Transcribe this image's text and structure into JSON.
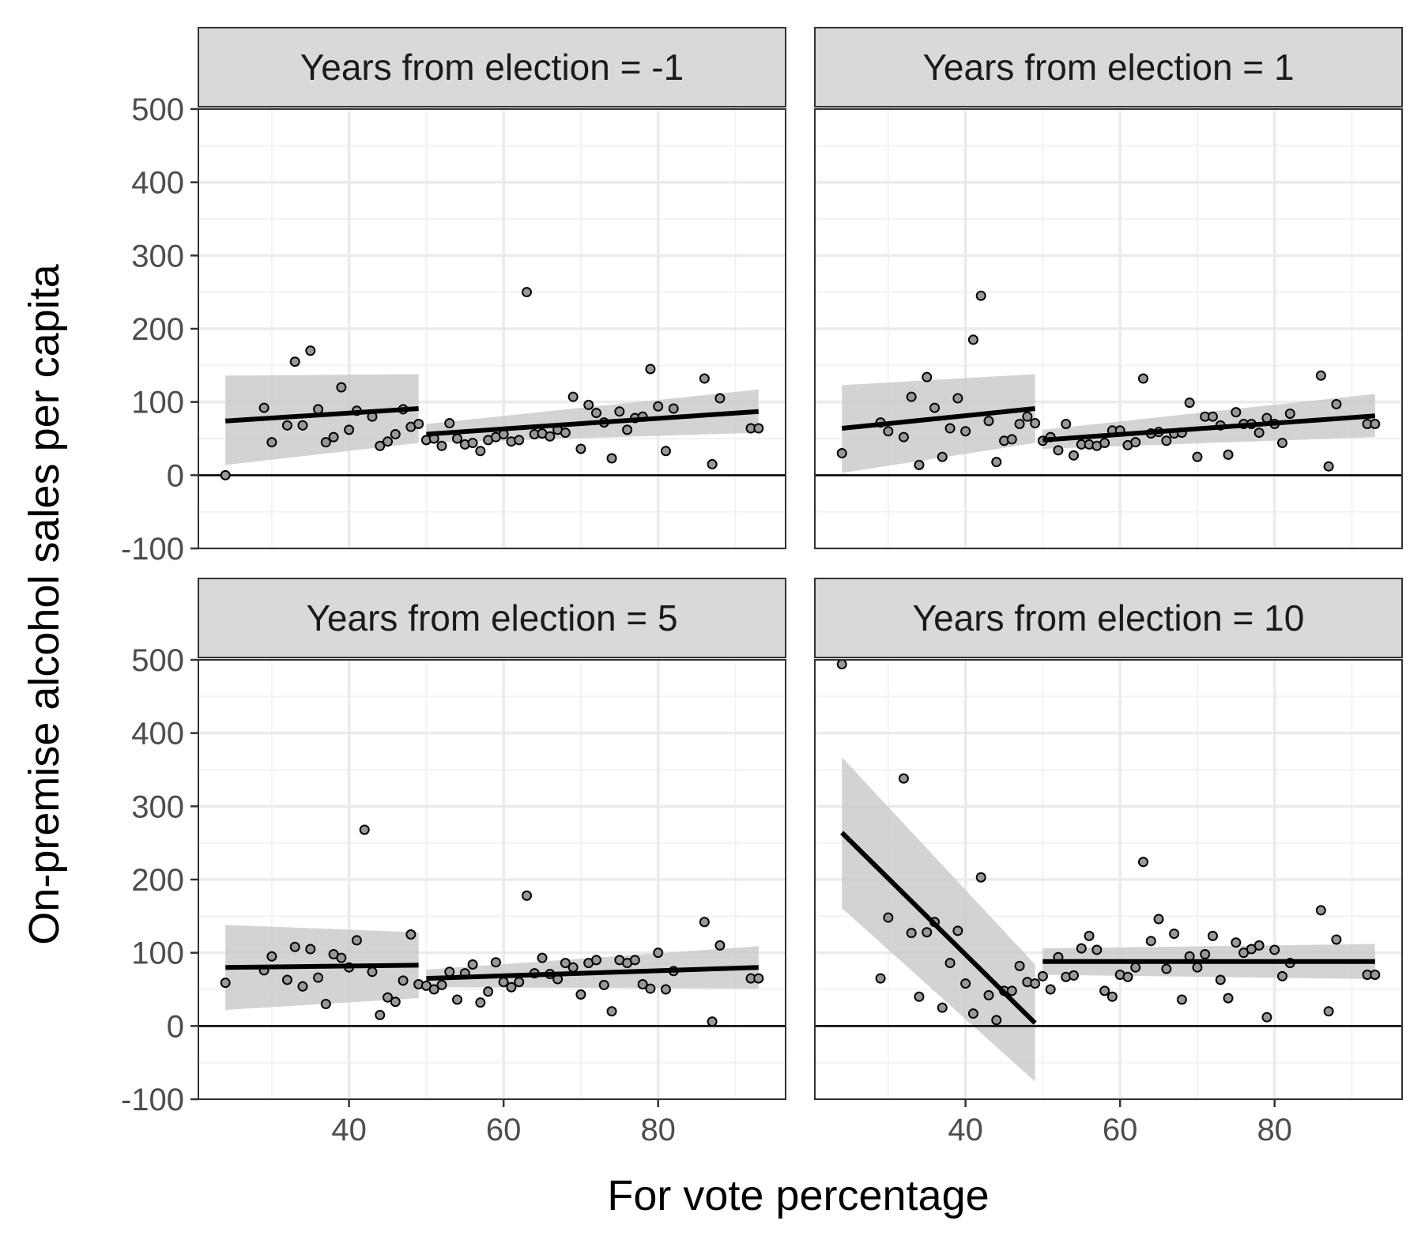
{
  "chart_data": {
    "type": "scatter",
    "xlabel": "For vote percentage",
    "ylabel": "On-premise alcohol sales per capita",
    "xlim": [
      20.5,
      96.5
    ],
    "ylim": [
      -100,
      500
    ],
    "x_ticks": [
      40,
      60,
      80
    ],
    "y_ticks": [
      -100,
      0,
      100,
      200,
      300,
      400,
      500
    ],
    "y_tick_labels": [
      "-100",
      "0",
      "100",
      "200",
      "300",
      "400",
      "500"
    ],
    "x_tick_labels": [
      "40",
      "60",
      "80"
    ],
    "reference_line_y": 0,
    "cutoff_x": 50,
    "grid": true,
    "layout": "2x2 facets",
    "colors": {
      "strip_fill": "#d9d9d9",
      "panel_border": "#333333",
      "grid_major": "#ebebeb",
      "grid_minor": "#f2f2f2",
      "point_fill": "#999999",
      "point_stroke": "#000000",
      "fit_line": "#000000",
      "ribbon": "#c8c8c8"
    },
    "panels": [
      {
        "strip": "Years from election = -1",
        "points": [
          [
            24,
            0
          ],
          [
            29,
            92
          ],
          [
            30,
            45
          ],
          [
            32,
            68
          ],
          [
            33,
            155
          ],
          [
            34,
            68
          ],
          [
            35,
            170
          ],
          [
            36,
            90
          ],
          [
            37,
            45
          ],
          [
            38,
            52
          ],
          [
            39,
            120
          ],
          [
            40,
            62
          ],
          [
            41,
            88
          ],
          [
            43,
            80
          ],
          [
            44,
            40
          ],
          [
            45,
            46
          ],
          [
            46,
            56
          ],
          [
            47,
            90
          ],
          [
            48,
            66
          ],
          [
            49,
            70
          ],
          [
            50,
            48
          ],
          [
            51,
            50
          ],
          [
            52,
            40
          ],
          [
            53,
            71
          ],
          [
            54,
            50
          ],
          [
            55,
            42
          ],
          [
            56,
            44
          ],
          [
            57,
            33
          ],
          [
            58,
            48
          ],
          [
            59,
            52
          ],
          [
            60,
            56
          ],
          [
            61,
            46
          ],
          [
            62,
            48
          ],
          [
            63,
            250
          ],
          [
            64,
            56
          ],
          [
            65,
            57
          ],
          [
            66,
            53
          ],
          [
            67,
            62
          ],
          [
            68,
            58
          ],
          [
            69,
            107
          ],
          [
            70,
            36
          ],
          [
            71,
            96
          ],
          [
            72,
            85
          ],
          [
            73,
            72
          ],
          [
            74,
            23
          ],
          [
            75,
            87
          ],
          [
            76,
            62
          ],
          [
            77,
            78
          ],
          [
            78,
            80
          ],
          [
            79,
            145
          ],
          [
            80,
            94
          ],
          [
            81,
            33
          ],
          [
            82,
            91
          ],
          [
            86,
            132
          ],
          [
            87,
            15
          ],
          [
            88,
            105
          ],
          [
            92,
            64
          ],
          [
            93,
            64
          ]
        ],
        "fits": [
          {
            "x": [
              24,
              49
            ],
            "y": [
              74,
              91
            ],
            "ci_lower": [
              14,
              44
            ],
            "ci_upper": [
              136,
              138
            ]
          },
          {
            "x": [
              50,
              93
            ],
            "y": [
              56,
              87
            ],
            "ci_lower": [
              44,
              58
            ],
            "ci_upper": [
              70,
              117
            ]
          }
        ]
      },
      {
        "strip": "Years from election = 1",
        "points": [
          [
            24,
            30
          ],
          [
            29,
            72
          ],
          [
            30,
            60
          ],
          [
            32,
            52
          ],
          [
            33,
            107
          ],
          [
            34,
            14
          ],
          [
            35,
            134
          ],
          [
            36,
            92
          ],
          [
            37,
            25
          ],
          [
            38,
            64
          ],
          [
            39,
            105
          ],
          [
            40,
            60
          ],
          [
            41,
            185
          ],
          [
            42,
            245
          ],
          [
            43,
            74
          ],
          [
            44,
            18
          ],
          [
            45,
            47
          ],
          [
            46,
            49
          ],
          [
            47,
            70
          ],
          [
            48,
            80
          ],
          [
            49,
            71
          ],
          [
            50,
            47
          ],
          [
            51,
            52
          ],
          [
            52,
            34
          ],
          [
            53,
            70
          ],
          [
            54,
            27
          ],
          [
            55,
            42
          ],
          [
            56,
            42
          ],
          [
            57,
            40
          ],
          [
            58,
            44
          ],
          [
            59,
            61
          ],
          [
            60,
            61
          ],
          [
            61,
            41
          ],
          [
            62,
            45
          ],
          [
            63,
            132
          ],
          [
            64,
            57
          ],
          [
            65,
            59
          ],
          [
            66,
            47
          ],
          [
            67,
            57
          ],
          [
            68,
            58
          ],
          [
            69,
            99
          ],
          [
            70,
            25
          ],
          [
            71,
            80
          ],
          [
            72,
            80
          ],
          [
            73,
            68
          ],
          [
            74,
            28
          ],
          [
            75,
            86
          ],
          [
            76,
            70
          ],
          [
            77,
            70
          ],
          [
            78,
            58
          ],
          [
            79,
            78
          ],
          [
            80,
            70
          ],
          [
            81,
            44
          ],
          [
            82,
            84
          ],
          [
            86,
            136
          ],
          [
            87,
            12
          ],
          [
            88,
            97
          ],
          [
            92,
            70
          ],
          [
            93,
            70
          ]
        ],
        "fits": [
          {
            "x": [
              24,
              49
            ],
            "y": [
              64,
              91
            ],
            "ci_lower": [
              3,
              44
            ],
            "ci_upper": [
              123,
              138
            ]
          },
          {
            "x": [
              50,
              93
            ],
            "y": [
              48,
              81
            ],
            "ci_lower": [
              36,
              52
            ],
            "ci_upper": [
              62,
              111
            ]
          }
        ]
      },
      {
        "strip": "Years from election = 5",
        "points": [
          [
            24,
            59
          ],
          [
            29,
            76
          ],
          [
            30,
            95
          ],
          [
            32,
            63
          ],
          [
            33,
            108
          ],
          [
            34,
            54
          ],
          [
            35,
            105
          ],
          [
            36,
            66
          ],
          [
            37,
            30
          ],
          [
            38,
            98
          ],
          [
            39,
            93
          ],
          [
            40,
            80
          ],
          [
            41,
            117
          ],
          [
            42,
            268
          ],
          [
            43,
            74
          ],
          [
            44,
            15
          ],
          [
            45,
            39
          ],
          [
            46,
            33
          ],
          [
            47,
            62
          ],
          [
            48,
            125
          ],
          [
            49,
            57
          ],
          [
            50,
            55
          ],
          [
            51,
            50
          ],
          [
            52,
            56
          ],
          [
            53,
            74
          ],
          [
            54,
            36
          ],
          [
            55,
            72
          ],
          [
            56,
            84
          ],
          [
            57,
            32
          ],
          [
            58,
            47
          ],
          [
            59,
            87
          ],
          [
            60,
            60
          ],
          [
            61,
            53
          ],
          [
            62,
            60
          ],
          [
            63,
            178
          ],
          [
            64,
            72
          ],
          [
            65,
            93
          ],
          [
            66,
            71
          ],
          [
            67,
            64
          ],
          [
            68,
            86
          ],
          [
            69,
            80
          ],
          [
            70,
            43
          ],
          [
            71,
            86
          ],
          [
            72,
            90
          ],
          [
            73,
            56
          ],
          [
            74,
            20
          ],
          [
            75,
            90
          ],
          [
            76,
            86
          ],
          [
            77,
            90
          ],
          [
            78,
            57
          ],
          [
            79,
            51
          ],
          [
            80,
            100
          ],
          [
            81,
            50
          ],
          [
            82,
            75
          ],
          [
            86,
            142
          ],
          [
            87,
            6
          ],
          [
            88,
            110
          ],
          [
            92,
            65
          ],
          [
            93,
            65
          ]
        ],
        "fits": [
          {
            "x": [
              24,
              49
            ],
            "y": [
              80,
              83
            ],
            "ci_lower": [
              22,
              38
            ],
            "ci_upper": [
              138,
              128
            ]
          },
          {
            "x": [
              50,
              93
            ],
            "y": [
              65,
              80
            ],
            "ci_lower": [
              53,
              51
            ],
            "ci_upper": [
              77,
              109
            ]
          }
        ]
      },
      {
        "strip": "Years from election = 10",
        "points": [
          [
            24,
            494
          ],
          [
            29,
            65
          ],
          [
            30,
            148
          ],
          [
            32,
            338
          ],
          [
            33,
            127
          ],
          [
            34,
            40
          ],
          [
            35,
            128
          ],
          [
            36,
            142
          ],
          [
            37,
            25
          ],
          [
            38,
            86
          ],
          [
            39,
            130
          ],
          [
            40,
            58
          ],
          [
            41,
            17
          ],
          [
            42,
            203
          ],
          [
            43,
            42
          ],
          [
            44,
            8
          ],
          [
            45,
            48
          ],
          [
            46,
            48
          ],
          [
            47,
            82
          ],
          [
            48,
            60
          ],
          [
            49,
            58
          ],
          [
            50,
            68
          ],
          [
            51,
            50
          ],
          [
            52,
            94
          ],
          [
            53,
            67
          ],
          [
            54,
            69
          ],
          [
            55,
            106
          ],
          [
            56,
            123
          ],
          [
            57,
            104
          ],
          [
            58,
            48
          ],
          [
            59,
            40
          ],
          [
            60,
            70
          ],
          [
            61,
            67
          ],
          [
            62,
            80
          ],
          [
            63,
            224
          ],
          [
            64,
            116
          ],
          [
            65,
            146
          ],
          [
            66,
            78
          ],
          [
            67,
            126
          ],
          [
            68,
            36
          ],
          [
            69,
            95
          ],
          [
            70,
            80
          ],
          [
            71,
            98
          ],
          [
            72,
            123
          ],
          [
            73,
            63
          ],
          [
            74,
            38
          ],
          [
            75,
            114
          ],
          [
            76,
            100
          ],
          [
            77,
            105
          ],
          [
            78,
            110
          ],
          [
            79,
            12
          ],
          [
            80,
            104
          ],
          [
            81,
            68
          ],
          [
            82,
            86
          ],
          [
            86,
            158
          ],
          [
            87,
            20
          ],
          [
            88,
            118
          ],
          [
            92,
            70
          ],
          [
            93,
            70
          ]
        ],
        "fits": [
          {
            "x": [
              24,
              49
            ],
            "y": [
              264,
              4
            ],
            "ci_lower": [
              161,
              -76
            ],
            "ci_upper": [
              367,
              84
            ]
          },
          {
            "x": [
              50,
              93
            ],
            "y": [
              88,
              88
            ],
            "ci_lower": [
              70,
              64
            ],
            "ci_upper": [
              106,
              112
            ]
          }
        ]
      }
    ]
  }
}
